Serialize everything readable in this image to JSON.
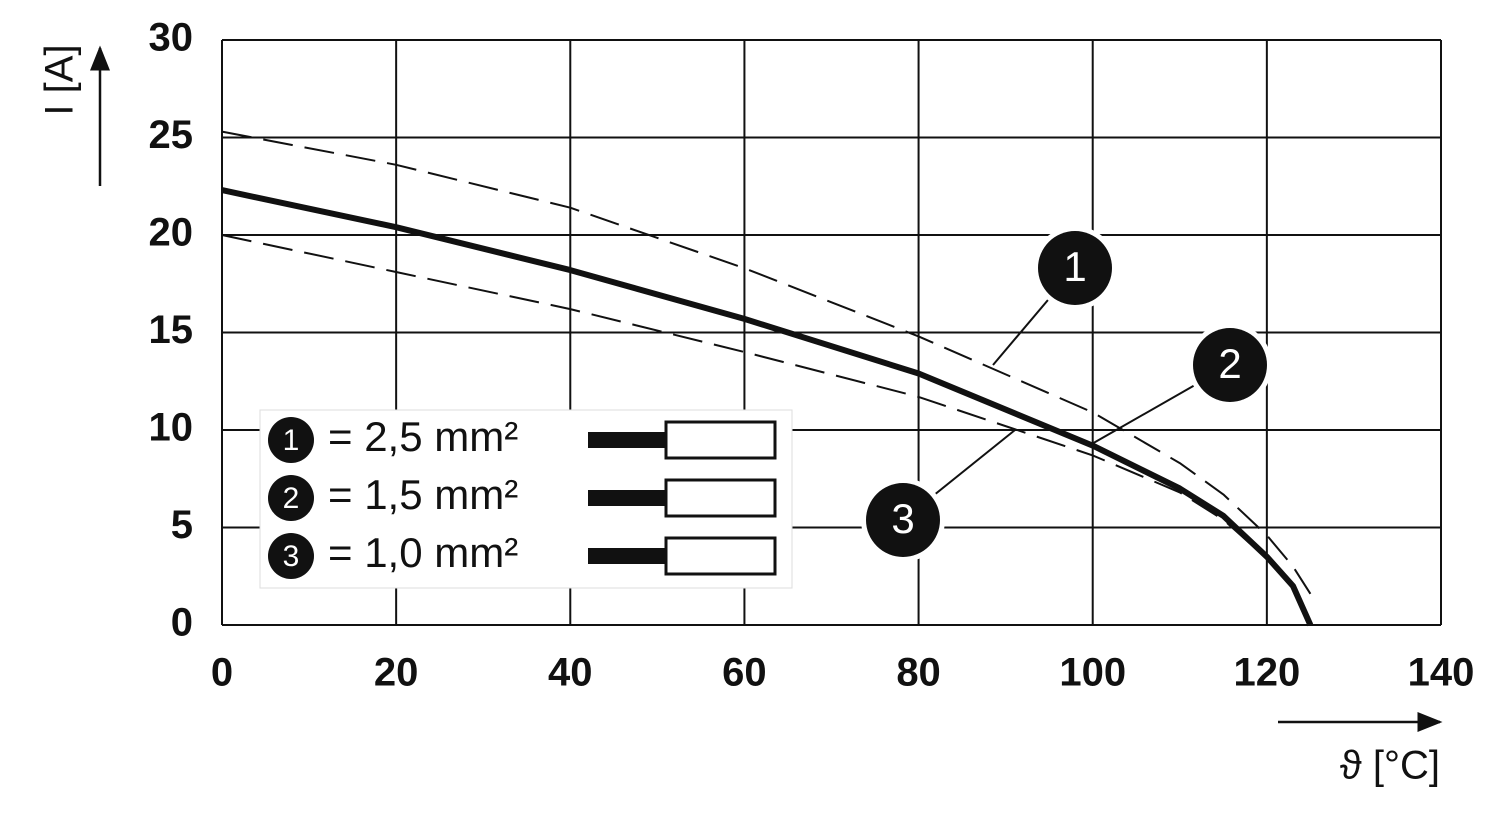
{
  "chart_data": {
    "type": "line",
    "x_label": "ϑ [°C]",
    "y_label": "I [A]",
    "x": [
      0,
      20,
      40,
      60,
      80,
      100,
      110,
      115,
      120,
      123,
      125
    ],
    "series": [
      {
        "marker": "1",
        "name": "= 2,5 mm²",
        "color": "#111111",
        "style": "dashed",
        "values": [
          25.3,
          23.6,
          21.4,
          18.3,
          14.8,
          10.9,
          8.3,
          6.7,
          4.6,
          3.0,
          1.6
        ]
      },
      {
        "marker": "2",
        "name": "= 1,5 mm²",
        "color": "#111111",
        "style": "solid",
        "values": [
          22.3,
          20.4,
          18.2,
          15.7,
          12.9,
          9.2,
          7.0,
          5.6,
          3.5,
          2.0,
          0
        ]
      },
      {
        "marker": "3",
        "name": "= 1,0 mm²",
        "color": "#111111",
        "style": "dashed",
        "values": [
          20.0,
          18.1,
          16.2,
          14.0,
          11.7,
          8.7,
          6.8,
          5.4,
          3.4,
          1.9,
          0
        ]
      }
    ],
    "xlim": [
      0,
      140
    ],
    "xticks": [
      0,
      20,
      40,
      60,
      80,
      100,
      120,
      140
    ],
    "ylim": [
      0,
      30
    ],
    "yticks": [
      0,
      5,
      10,
      15,
      20,
      25,
      30
    ],
    "grid": true,
    "legend": "lower left"
  }
}
